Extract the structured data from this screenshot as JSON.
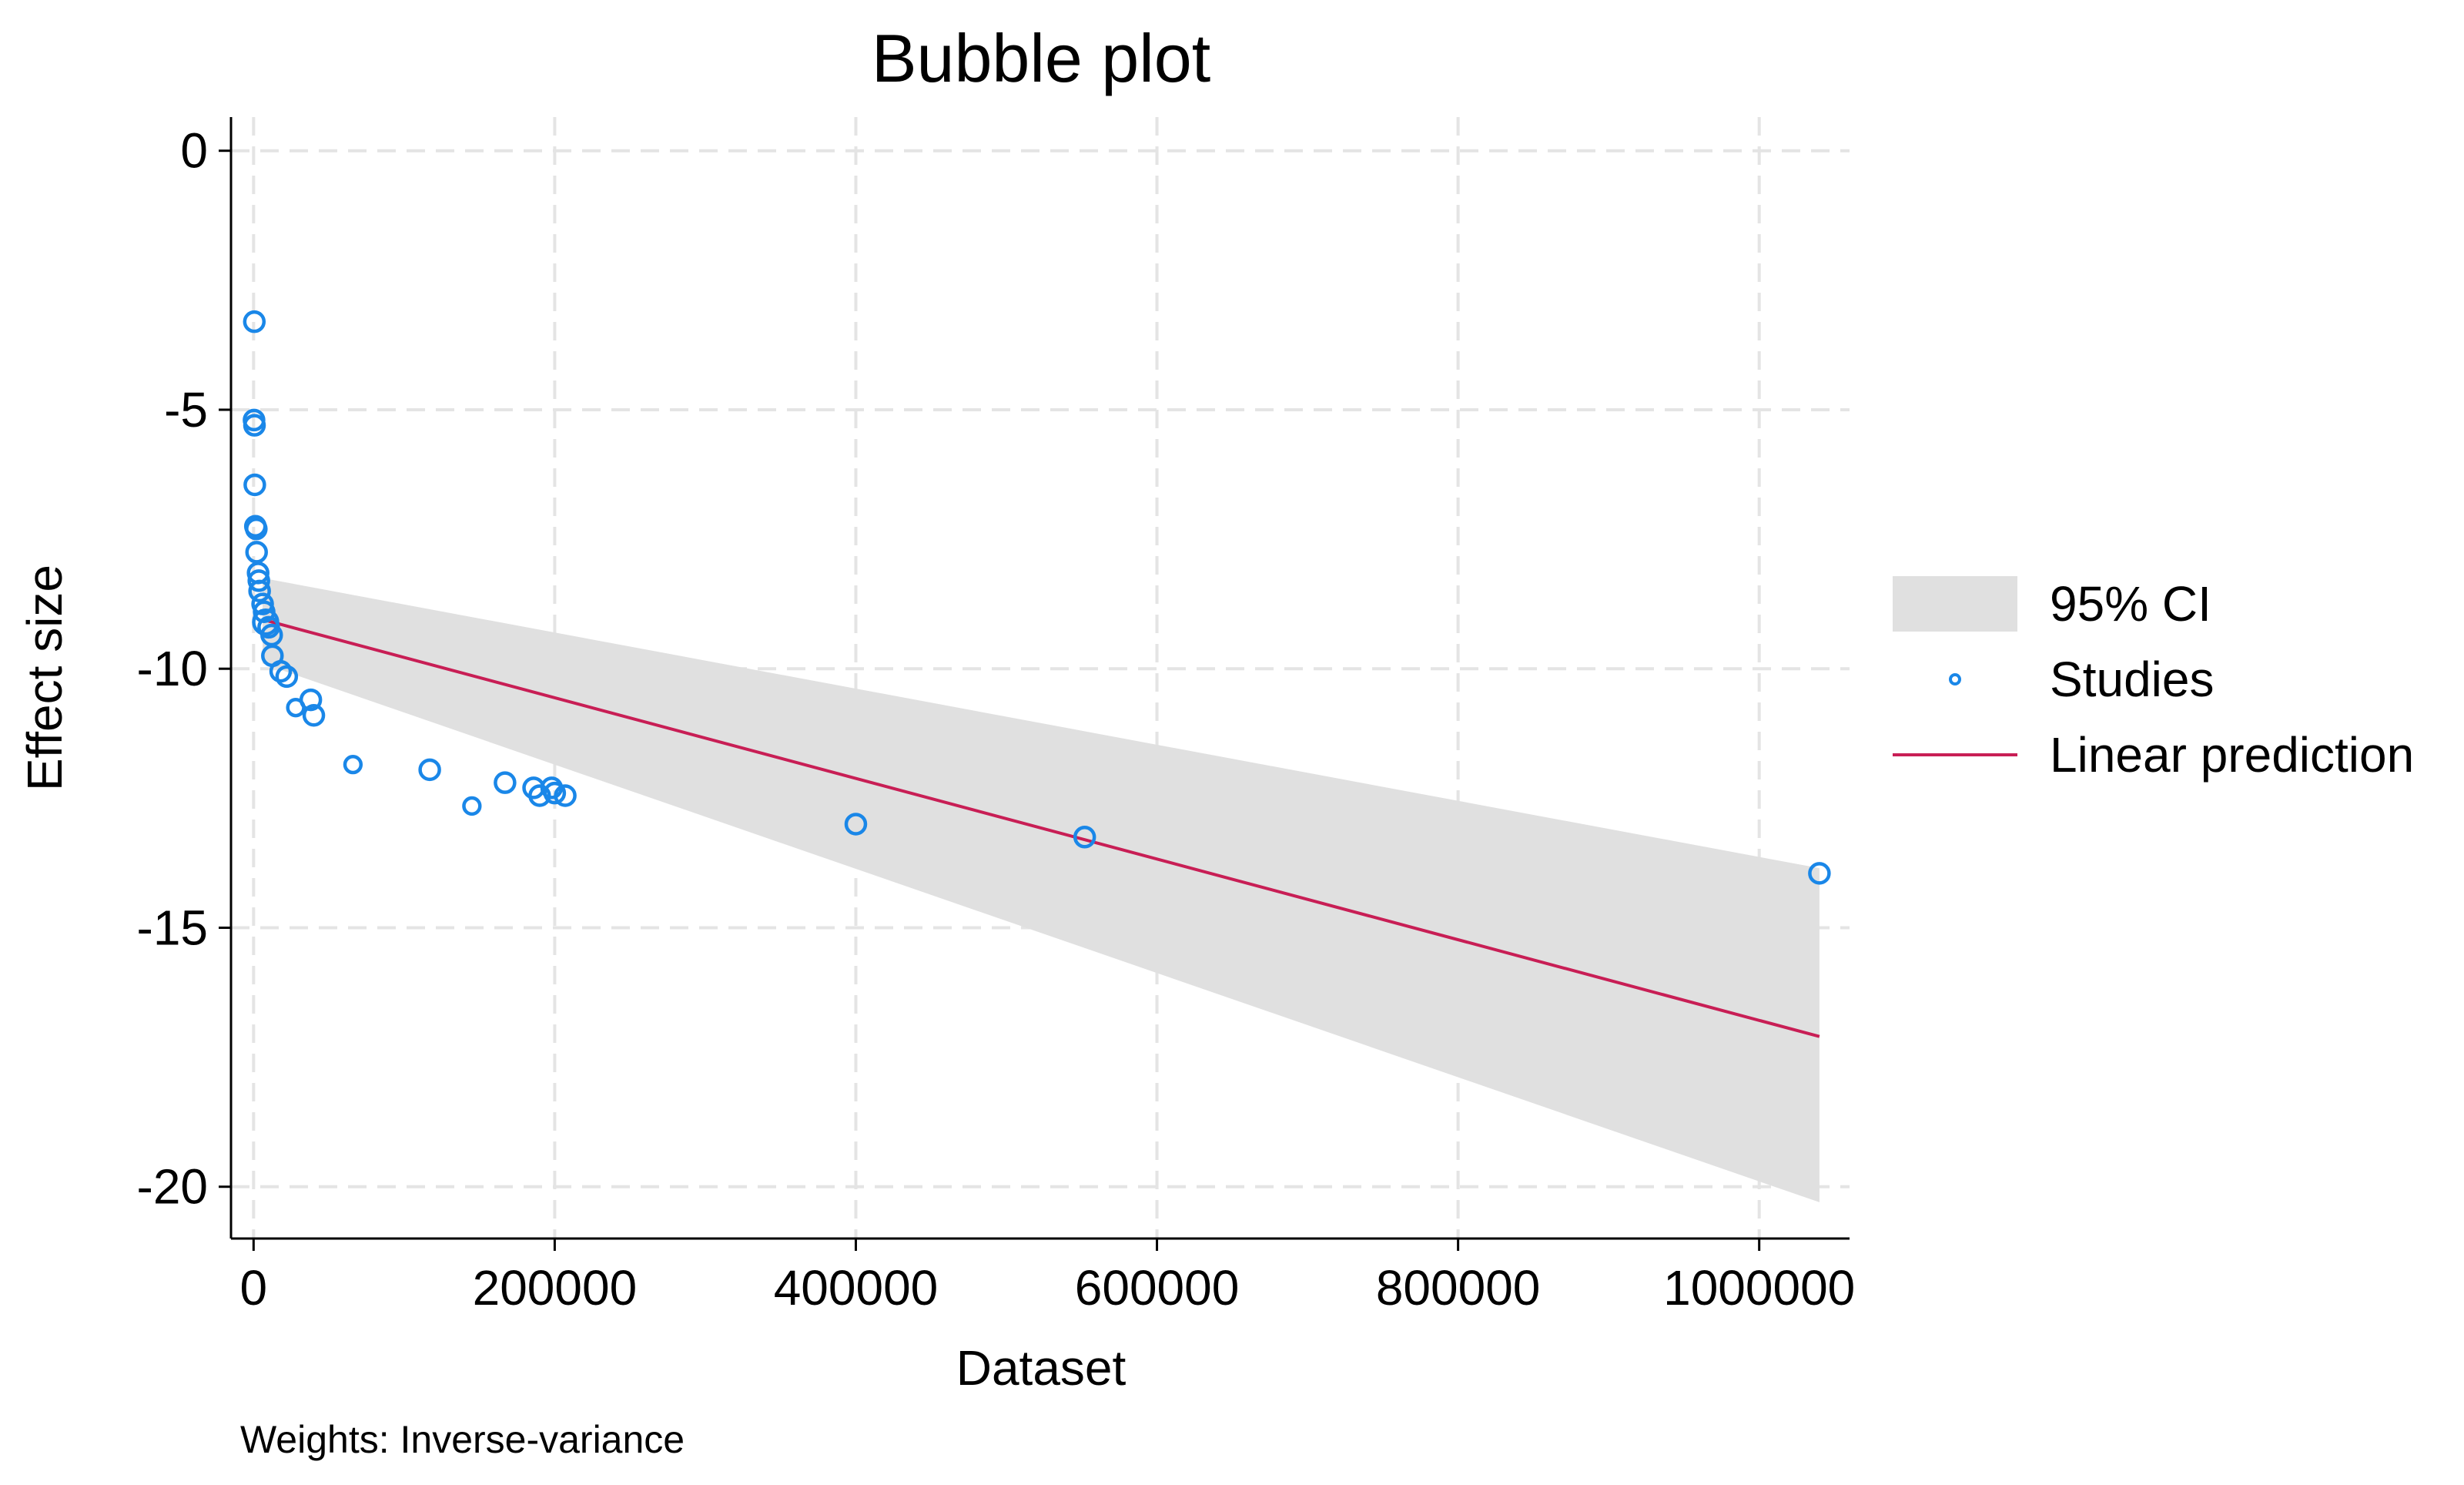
{
  "chart_data": {
    "type": "scatter",
    "title": "Bubble plot",
    "xlabel": "Dataset",
    "ylabel": "Effect size",
    "note": "Weights: Inverse-variance",
    "xlim": [
      -15000,
      1060000
    ],
    "ylim": [
      -21,
      0.65
    ],
    "xticks": [
      0,
      200000,
      400000,
      600000,
      800000,
      1000000
    ],
    "xtick_labels": [
      "0",
      "200000",
      "400000",
      "600000",
      "800000",
      "1000000"
    ],
    "yticks": [
      0,
      -5,
      -10,
      -15,
      -20
    ],
    "ytick_labels": [
      "0",
      "-5",
      "-10",
      "-15",
      "-20"
    ],
    "grid": true,
    "legend_position": "right",
    "legend": [
      {
        "key": "ci",
        "label": "95% CI",
        "color": "#e0e0e0"
      },
      {
        "key": "studies",
        "label": "Studies",
        "color": "#1a87e8"
      },
      {
        "key": "line",
        "label": "Linear prediction",
        "color": "#c81e55"
      }
    ],
    "series": [
      {
        "name": "Studies",
        "kind": "scatter",
        "color": "#1a87e8",
        "points": [
          {
            "x": 500,
            "y": -3.3,
            "w": 2.5
          },
          {
            "x": 300,
            "y": -5.2,
            "w": 2.5
          },
          {
            "x": 600,
            "y": -5.3,
            "w": 2.5
          },
          {
            "x": 800,
            "y": -6.45,
            "w": 2.5
          },
          {
            "x": 1200,
            "y": -7.25,
            "w": 2.5
          },
          {
            "x": 1800,
            "y": -7.3,
            "w": 2.5
          },
          {
            "x": 2000,
            "y": -7.75,
            "w": 2.5
          },
          {
            "x": 3000,
            "y": -8.15,
            "w": 2.5
          },
          {
            "x": 3500,
            "y": -8.3,
            "w": 2.5
          },
          {
            "x": 4000,
            "y": -8.5,
            "w": 2.5
          },
          {
            "x": 6000,
            "y": -8.75,
            "w": 2.5
          },
          {
            "x": 7000,
            "y": -8.9,
            "w": 2.5
          },
          {
            "x": 8000,
            "y": -9.1,
            "w": 3.5
          },
          {
            "x": 10000,
            "y": -9.2,
            "w": 2.5
          },
          {
            "x": 12000,
            "y": -9.35,
            "w": 2.5
          },
          {
            "x": 12500,
            "y": -9.75,
            "w": 2.5
          },
          {
            "x": 18000,
            "y": -10.05,
            "w": 2.5
          },
          {
            "x": 22000,
            "y": -10.15,
            "w": 2.5
          },
          {
            "x": 28000,
            "y": -10.75,
            "w": 1.8
          },
          {
            "x": 38000,
            "y": -10.6,
            "w": 2.5
          },
          {
            "x": 40000,
            "y": -10.9,
            "w": 2.5
          },
          {
            "x": 66000,
            "y": -11.85,
            "w": 1.8
          },
          {
            "x": 117000,
            "y": -11.95,
            "w": 2.5
          },
          {
            "x": 145000,
            "y": -12.65,
            "w": 1.8
          },
          {
            "x": 167000,
            "y": -12.2,
            "w": 2.5
          },
          {
            "x": 186000,
            "y": -12.3,
            "w": 2.5
          },
          {
            "x": 190000,
            "y": -12.45,
            "w": 2.5
          },
          {
            "x": 198000,
            "y": -12.3,
            "w": 2.5
          },
          {
            "x": 200000,
            "y": -12.4,
            "w": 2.5
          },
          {
            "x": 207000,
            "y": -12.45,
            "w": 2.5
          },
          {
            "x": 400000,
            "y": -13,
            "w": 2.5
          },
          {
            "x": 552000,
            "y": -13.25,
            "w": 2.5
          },
          {
            "x": 1040000,
            "y": -13.95,
            "w": 2.5
          }
        ]
      },
      {
        "name": "Linear prediction",
        "kind": "line",
        "color": "#c81e55",
        "x": [
          6000,
          1040000
        ],
        "y": [
          -9.05,
          -17.1
        ]
      },
      {
        "name": "95% CI",
        "kind": "band",
        "color": "#e0e0e0",
        "x": [
          6000,
          1040000
        ],
        "lower": [
          -9.9,
          -20.3
        ],
        "upper": [
          -8.25,
          -13.85
        ]
      }
    ]
  }
}
